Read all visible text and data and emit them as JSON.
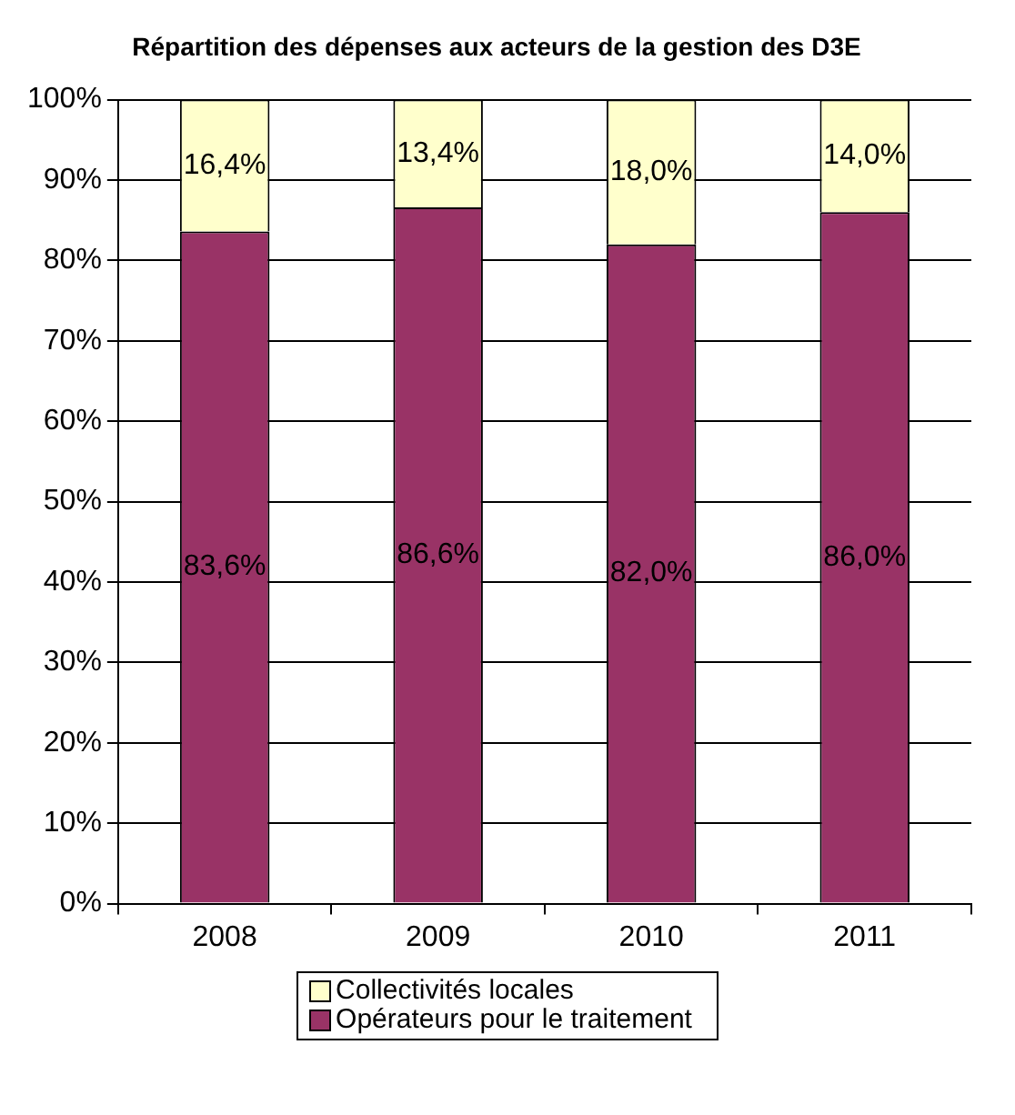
{
  "chart_data": {
    "type": "bar",
    "title": "Répartition des dépenses aux acteurs de la gestion des D3E",
    "categories": [
      "2008",
      "2009",
      "2010",
      "2011"
    ],
    "stacked": true,
    "series": [
      {
        "name": "Opérateurs pour le traitement",
        "color": "#993366",
        "values": [
          83.6,
          86.6,
          82.0,
          86.0
        ],
        "value_labels": [
          "83,6%",
          "86,6%",
          "82,0%",
          "86,0%"
        ]
      },
      {
        "name": "Collectivités locales",
        "color": "#ffffcc",
        "values": [
          16.4,
          13.4,
          18.0,
          14.0
        ],
        "value_labels": [
          "16,4%",
          "13,4%",
          "18,0%",
          "14,0%"
        ]
      }
    ],
    "ylim": [
      0,
      100
    ],
    "yticks": [
      {
        "value": 0,
        "label": "0%"
      },
      {
        "value": 10,
        "label": "10%"
      },
      {
        "value": 20,
        "label": "20%"
      },
      {
        "value": 30,
        "label": "30%"
      },
      {
        "value": 40,
        "label": "40%"
      },
      {
        "value": 50,
        "label": "50%"
      },
      {
        "value": 60,
        "label": "60%"
      },
      {
        "value": 70,
        "label": "70%"
      },
      {
        "value": 80,
        "label": "80%"
      },
      {
        "value": 90,
        "label": "90%"
      },
      {
        "value": 100,
        "label": "100%"
      }
    ],
    "grid": "y",
    "legend": "bottom"
  }
}
